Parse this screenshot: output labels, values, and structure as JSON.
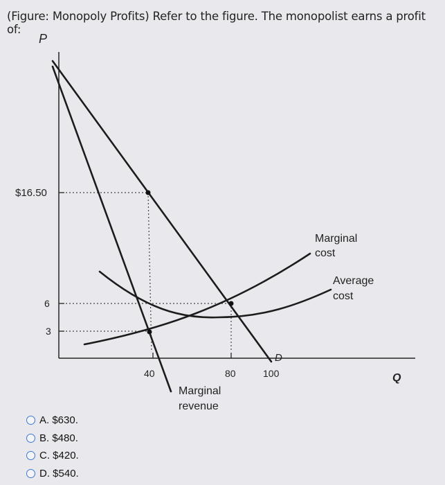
{
  "question": "(Figure: Monopoly Profits) Refer to the figure. The monopolist earns a profit of:",
  "axes": {
    "y_label": "P",
    "x_label": "Q",
    "y_ticks": [
      "$16.50",
      "6",
      "3"
    ],
    "x_ticks": [
      "40",
      "80",
      "100"
    ]
  },
  "curve_labels": {
    "demand": "D",
    "mr_line1": "Marginal",
    "mr_line2": "revenue",
    "mc_line1": "Marginal",
    "mc_line2": "cost",
    "ac_line1": "Average",
    "ac_line2": "cost"
  },
  "options": [
    {
      "label": "A. $630."
    },
    {
      "label": "B. $480."
    },
    {
      "label": "C. $420."
    },
    {
      "label": "D. $540."
    }
  ],
  "colors": {
    "radio": "#3b78d8",
    "curve": "#1c1c1c"
  }
}
